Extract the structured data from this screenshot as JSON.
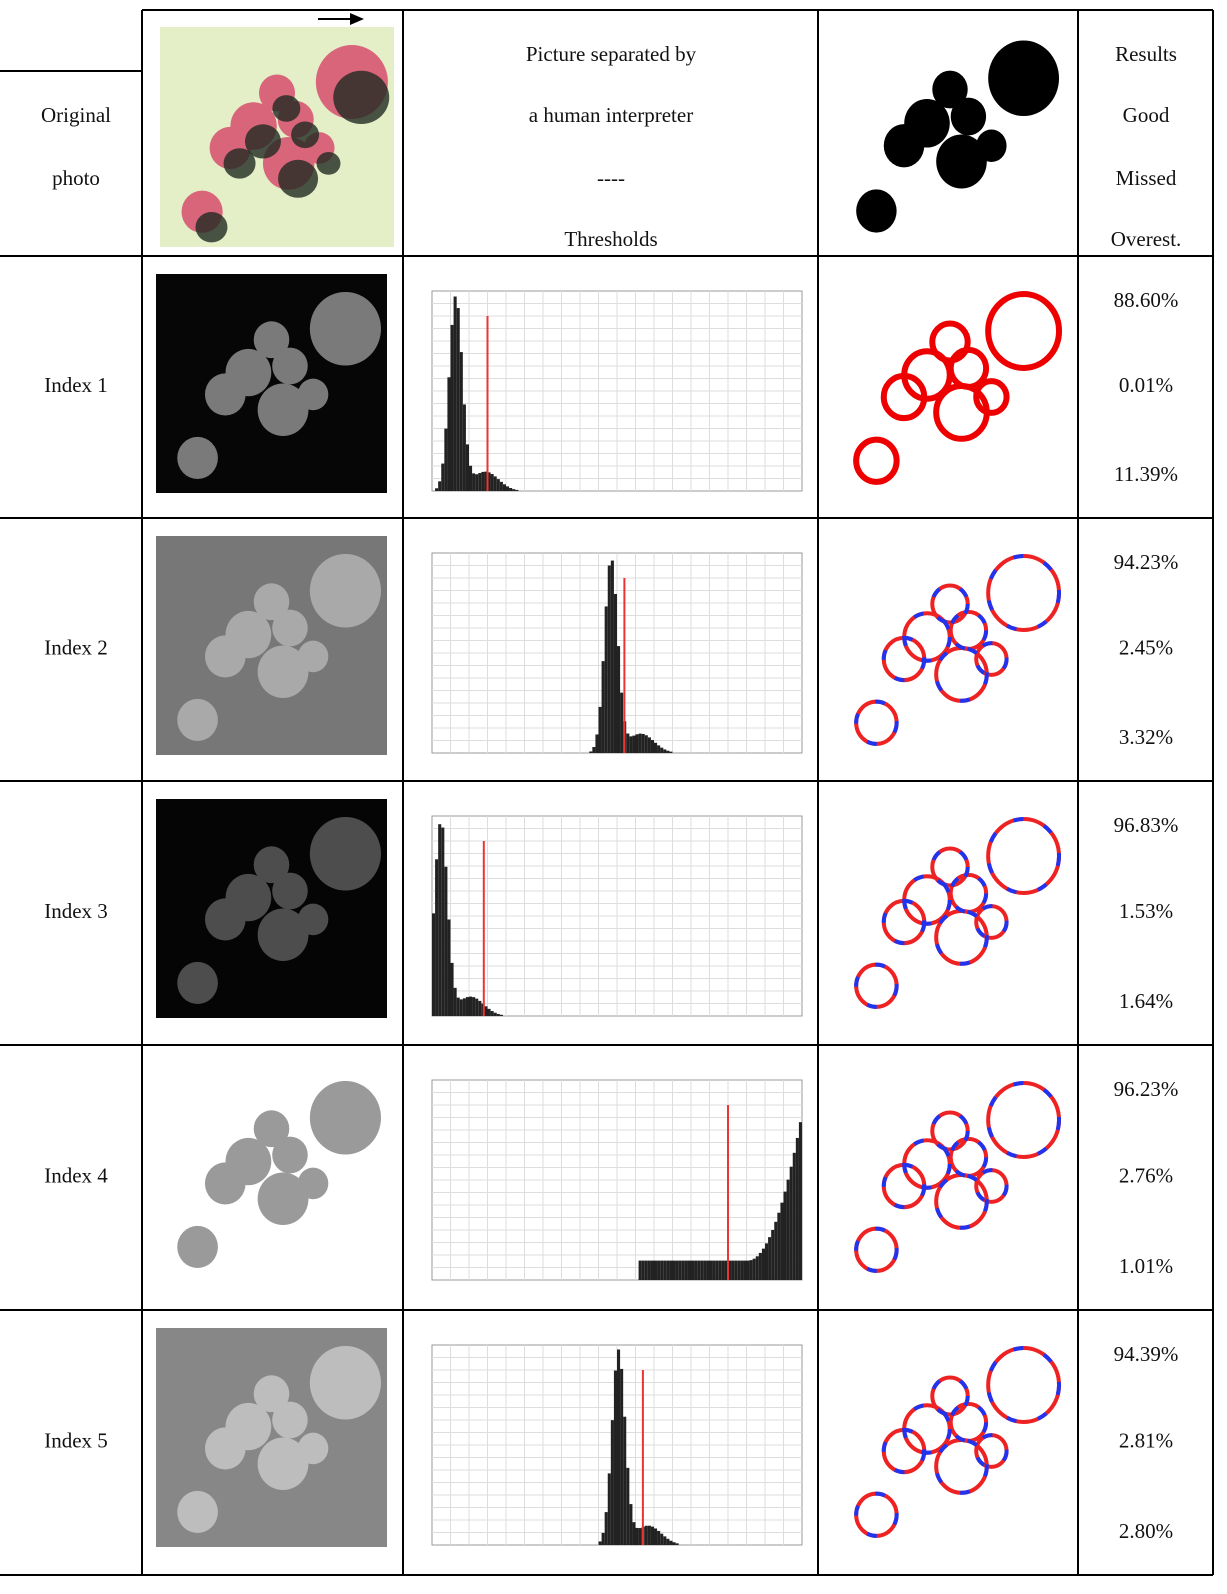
{
  "table": {
    "header": {
      "first": [
        "Original",
        "photo"
      ],
      "middle": [
        "Picture separated by",
        "a human interpreter",
        "----",
        "Thresholds"
      ],
      "last": [
        "Results",
        "Good",
        "Missed",
        "Overest."
      ]
    },
    "rows": [
      {
        "label": "Index 1",
        "results": [
          "88.60%",
          "0.01%",
          "11.39%"
        ]
      },
      {
        "label": "Index 2",
        "results": [
          "94.23%",
          "2.45%",
          "3.32%"
        ]
      },
      {
        "label": "Index 3",
        "results": [
          "96.83%",
          "1.53%",
          "1.64%"
        ]
      },
      {
        "label": "Index 4",
        "results": [
          "96.23%",
          "2.76%",
          "1.01%"
        ]
      },
      {
        "label": "Index 5",
        "results": [
          "94.39%",
          "2.81%",
          "2.80%"
        ]
      }
    ]
  }
}
